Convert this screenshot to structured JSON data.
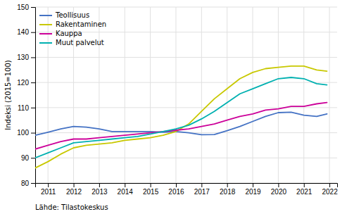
{
  "chart_data": {
    "type": "line",
    "ylabel": "Indeksi (2015=100)",
    "annotations": [
      "Lähde: Tilastokeskus"
    ],
    "x": [
      2010.5,
      2011.0,
      2011.5,
      2012.0,
      2012.5,
      2013.0,
      2013.5,
      2014.0,
      2014.5,
      2015.0,
      2015.5,
      2016.0,
      2016.5,
      2017.0,
      2017.5,
      2018.0,
      2018.5,
      2019.0,
      2019.5,
      2020.0,
      2020.5,
      2021.0,
      2021.5,
      2021.9
    ],
    "xlim": [
      2010.5,
      2022.3
    ],
    "xticks": [
      2011,
      2012,
      2013,
      2014,
      2015,
      2016,
      2017,
      2018,
      2019,
      2020,
      2021,
      2022
    ],
    "ylim": [
      80,
      150
    ],
    "yticks": [
      80,
      90,
      100,
      110,
      120,
      130,
      140,
      150
    ],
    "grid": true,
    "legend": "upper left",
    "series": [
      {
        "name": "Teollisuus",
        "color": "#4472C4",
        "values": [
          99.0,
          100.2,
          101.5,
          102.5,
          102.2,
          101.5,
          100.5,
          100.5,
          100.5,
          100.5,
          100.2,
          100.5,
          100.0,
          99.2,
          99.3,
          100.8,
          102.5,
          104.5,
          106.5,
          108.0,
          108.2,
          107.0,
          106.5,
          107.5
        ]
      },
      {
        "name": "Rakentaminen",
        "color": "#C8C800",
        "values": [
          86.0,
          88.5,
          91.5,
          94.0,
          95.0,
          95.5,
          96.0,
          97.0,
          97.5,
          98.0,
          99.0,
          100.5,
          103.5,
          108.5,
          113.5,
          117.5,
          121.5,
          124.0,
          125.5,
          126.0,
          126.5,
          126.5,
          125.0,
          124.5
        ]
      },
      {
        "name": "Kauppa",
        "color": "#CC0099",
        "values": [
          93.5,
          95.0,
          96.5,
          97.5,
          97.5,
          98.0,
          98.5,
          99.0,
          99.5,
          100.0,
          100.5,
          101.0,
          101.5,
          102.5,
          103.5,
          105.0,
          106.5,
          107.5,
          109.0,
          109.5,
          110.5,
          110.5,
          111.5,
          112.0
        ]
      },
      {
        "name": "Muut palvelut",
        "color": "#00B0B0",
        "values": [
          90.0,
          92.0,
          94.0,
          96.0,
          96.5,
          97.0,
          97.5,
          98.0,
          98.5,
          99.5,
          100.5,
          101.5,
          103.0,
          105.5,
          108.5,
          112.0,
          115.5,
          117.5,
          119.5,
          121.5,
          122.0,
          121.5,
          119.5,
          119.0
        ]
      }
    ]
  }
}
